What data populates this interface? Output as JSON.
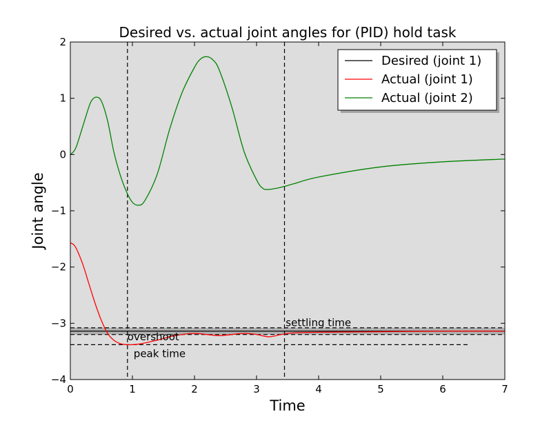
{
  "chart_data": {
    "type": "line",
    "title": "Desired vs. actual joint angles for (PID) hold task",
    "xlabel": "Time",
    "ylabel": "Joint angle",
    "xlim": [
      0,
      7
    ],
    "ylim": [
      -4,
      2
    ],
    "xticks": [
      "0",
      "1",
      "2",
      "3",
      "4",
      "5",
      "6",
      "7"
    ],
    "yticks": [
      "−4",
      "−3",
      "−2",
      "−1",
      "0",
      "1",
      "2"
    ],
    "grid": false,
    "legend_position": "top-right",
    "colors": {
      "axes_bg": "#dddddd",
      "desired": "#000000",
      "actual_joint1": "#ff0000",
      "actual_joint2": "#008000"
    },
    "series": [
      {
        "name": "Desired (joint 1)",
        "color": "#000000",
        "x": [
          0,
          7
        ],
        "y": [
          -3.14,
          -3.14
        ]
      },
      {
        "name": "Actual (joint 1)",
        "color": "#ff0000",
        "x": [
          0,
          0.05,
          0.1,
          0.2,
          0.3,
          0.4,
          0.5,
          0.6,
          0.7,
          0.8,
          0.9,
          1.0,
          1.1,
          1.2,
          1.4,
          1.6,
          1.8,
          2.0,
          2.2,
          2.4,
          2.6,
          2.8,
          3.0,
          3.2,
          3.4,
          3.6,
          4.0,
          5.0,
          6.0,
          7.0
        ],
        "y": [
          -1.57,
          -1.6,
          -1.68,
          -1.95,
          -2.3,
          -2.65,
          -2.95,
          -3.18,
          -3.3,
          -3.36,
          -3.38,
          -3.38,
          -3.37,
          -3.35,
          -3.3,
          -3.24,
          -3.2,
          -3.18,
          -3.2,
          -3.22,
          -3.2,
          -3.18,
          -3.2,
          -3.24,
          -3.2,
          -3.17,
          -3.16,
          -3.15,
          -3.14,
          -3.14
        ]
      },
      {
        "name": "Actual (joint 2)",
        "color": "#008000",
        "x": [
          0,
          0.05,
          0.1,
          0.2,
          0.3,
          0.35,
          0.42,
          0.5,
          0.6,
          0.7,
          0.8,
          0.9,
          1.0,
          1.1,
          1.2,
          1.4,
          1.6,
          1.8,
          2.0,
          2.1,
          2.2,
          2.3,
          2.4,
          2.6,
          2.8,
          3.0,
          3.1,
          3.2,
          3.4,
          3.6,
          4.0,
          5.0,
          6.0,
          7.0
        ],
        "y": [
          0,
          0.05,
          0.15,
          0.5,
          0.85,
          0.97,
          1.02,
          0.95,
          0.6,
          0.05,
          -0.35,
          -0.65,
          -0.85,
          -0.9,
          -0.82,
          -0.35,
          0.45,
          1.1,
          1.55,
          1.7,
          1.74,
          1.68,
          1.5,
          0.85,
          0.05,
          -0.45,
          -0.6,
          -0.62,
          -0.58,
          -0.52,
          -0.4,
          -0.22,
          -0.13,
          -0.08
        ]
      }
    ],
    "reference_lines": {
      "vertical": [
        {
          "x": 0.92
        },
        {
          "x": 3.45
        }
      ],
      "horizontal": [
        {
          "y": -3.08,
          "xmax": 7
        },
        {
          "y": -3.2,
          "xmax": 7
        },
        {
          "y": -3.38,
          "xmax": 6.4
        }
      ],
      "band": {
        "y1": -3.08,
        "y2": -3.2
      }
    },
    "annotations": [
      {
        "text": "settling time",
        "x": 3.47,
        "y": -3.05
      },
      {
        "text": "overshoot",
        "x": 0.92,
        "y": -3.3
      },
      {
        "text": "peak time",
        "x": 1.02,
        "y": -3.6
      }
    ]
  }
}
